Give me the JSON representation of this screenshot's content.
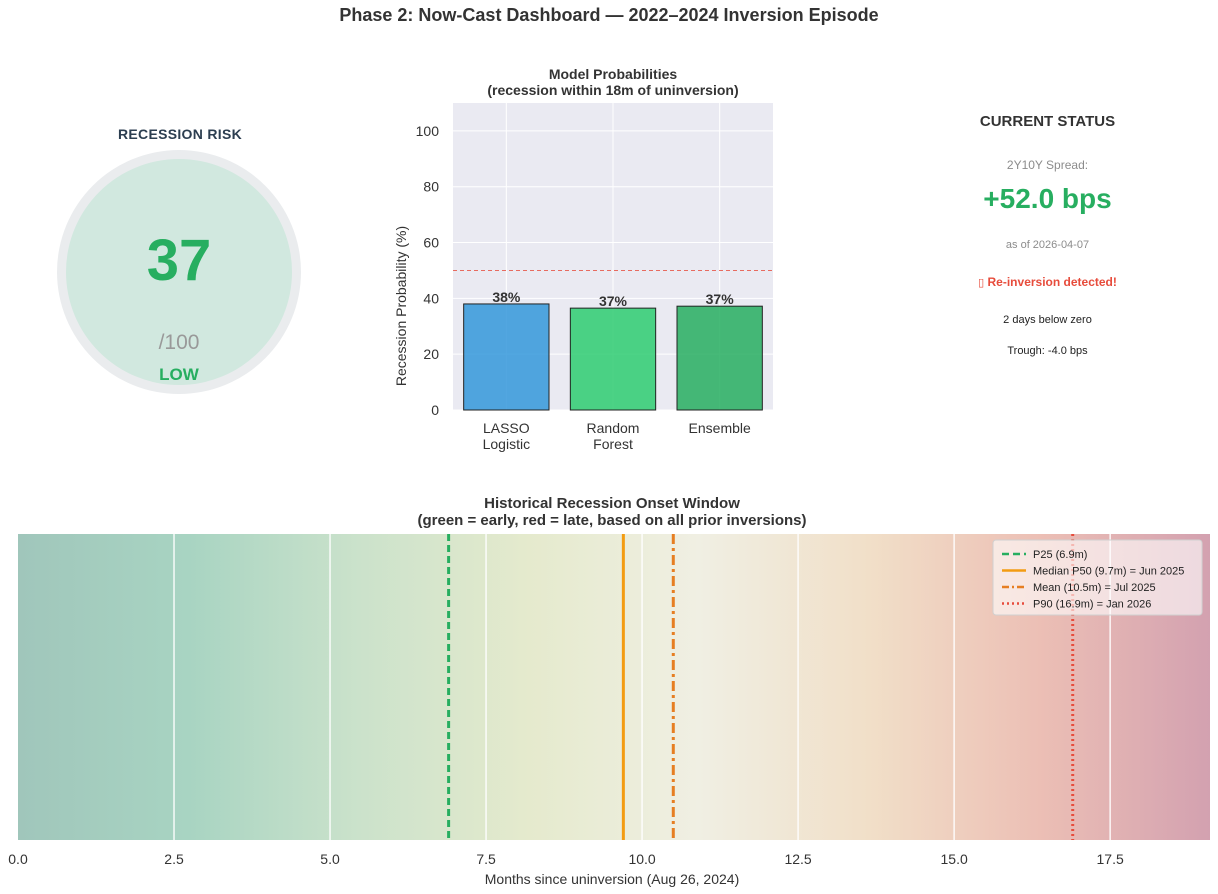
{
  "page_title": "Phase 2: Now-Cast Dashboard — 2022–2024 Inversion Episode",
  "gauge": {
    "title": "RECESSION RISK",
    "score": "37",
    "denominator": "/100",
    "level": "LOW",
    "level_color": "#27ae60",
    "fill_color": "#d1e8df",
    "ring_color": "#eaecee"
  },
  "status": {
    "title": "CURRENT STATUS",
    "spread_label": "2Y10Y Spread:",
    "spread_value": "+52.0 bps",
    "as_of": "as of 2026-04-07",
    "alert_icon": "warning-icon",
    "alert_glyph": "▯",
    "alert": "Re-inversion detected!",
    "days_below": "2 days below zero",
    "trough": "Trough: -4.0 bps"
  },
  "chart_data": [
    {
      "type": "bar",
      "title": "Model Probabilities",
      "subtitle": "(recession within 18m of uninversion)",
      "xlabel": "",
      "ylabel": "Recession Probability (%)",
      "ylim": [
        0,
        110
      ],
      "yticks": [
        0,
        20,
        40,
        60,
        80,
        100
      ],
      "grid": true,
      "categories": [
        [
          "LASSO",
          "Logistic"
        ],
        [
          "Random",
          "Forest"
        ],
        [
          "Ensemble"
        ]
      ],
      "values": [
        38,
        36.5,
        37.2
      ],
      "data_labels": [
        "38%",
        "37%",
        "37%"
      ],
      "colors": [
        "#3498db",
        "#2ecc71",
        "#27ae60"
      ],
      "threshold": {
        "value": 50,
        "color": "#e74c3c",
        "style": "dashed"
      }
    },
    {
      "type": "heatmap",
      "title": "Historical Recession Onset Window",
      "subtitle": "(green = early, red = late, based on all prior inversions)",
      "xlabel": "Months since uninversion (Aug 26, 2024)",
      "xlim": [
        0,
        19.1
      ],
      "xticks": [
        0.0,
        2.5,
        5.0,
        7.5,
        10.0,
        12.5,
        15.0,
        17.5
      ],
      "xtick_labels": [
        "0.0",
        "2.5",
        "5.0",
        "7.5",
        "10.0",
        "12.5",
        "15.0",
        "17.5"
      ],
      "gradient": [
        "#a0c6bb",
        "#a8d4c2",
        "#cbe2cb",
        "#e5eacd",
        "#f0efe3",
        "#f1dfc8",
        "#ecbfb5",
        "#d3a1b0"
      ],
      "lines": [
        {
          "label": "P25 (6.9m)",
          "x": 6.9,
          "color": "#27ae60",
          "style": "dashed"
        },
        {
          "label": "Median P50 (9.7m) = Jun 2025",
          "x": 9.7,
          "color": "#f39c12",
          "style": "solid"
        },
        {
          "label": "Mean (10.5m) = Jul 2025",
          "x": 10.5,
          "color": "#e67e22",
          "style": "dashdot"
        },
        {
          "label": "P90 (16.9m) = Jan 2026",
          "x": 16.9,
          "color": "#e74c3c",
          "style": "dotted"
        }
      ],
      "legend_position": "top-right"
    }
  ]
}
